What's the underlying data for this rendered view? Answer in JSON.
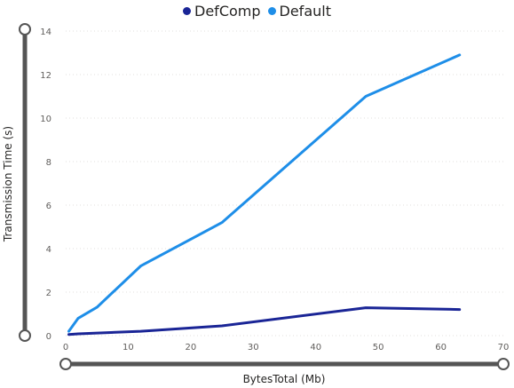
{
  "colors": {
    "DefComp": "#1a2596",
    "Default": "#1e8ee8",
    "scroll": "#555555",
    "grid": "#e1dfdd"
  },
  "legend": {
    "items": [
      {
        "name": "DefComp",
        "color": "#1a2596"
      },
      {
        "name": "Default",
        "color": "#1e8ee8"
      }
    ]
  },
  "chart_data": {
    "type": "line",
    "title": "",
    "xlabel": "BytesTotal (Mb)",
    "ylabel": "Transmission Time (s)",
    "xlim": [
      0,
      70
    ],
    "ylim": [
      0,
      14
    ],
    "xticks": [
      "0",
      "10",
      "20",
      "30",
      "40",
      "50",
      "60",
      "70"
    ],
    "yticks": [
      "0",
      "2",
      "4",
      "6",
      "8",
      "10",
      "12",
      "14"
    ],
    "grid": "horizontal dotted",
    "legend_position": "top-center",
    "series": [
      {
        "name": "DefComp",
        "x": [
          0.5,
          2,
          5,
          12,
          25,
          48,
          63
        ],
        "y": [
          0.05,
          0.08,
          0.12,
          0.2,
          0.45,
          1.28,
          1.2
        ]
      },
      {
        "name": "Default",
        "x": [
          0.5,
          2,
          5,
          12,
          25,
          48,
          63
        ],
        "y": [
          0.2,
          0.8,
          1.3,
          3.2,
          5.2,
          11.0,
          12.9
        ]
      }
    ]
  }
}
